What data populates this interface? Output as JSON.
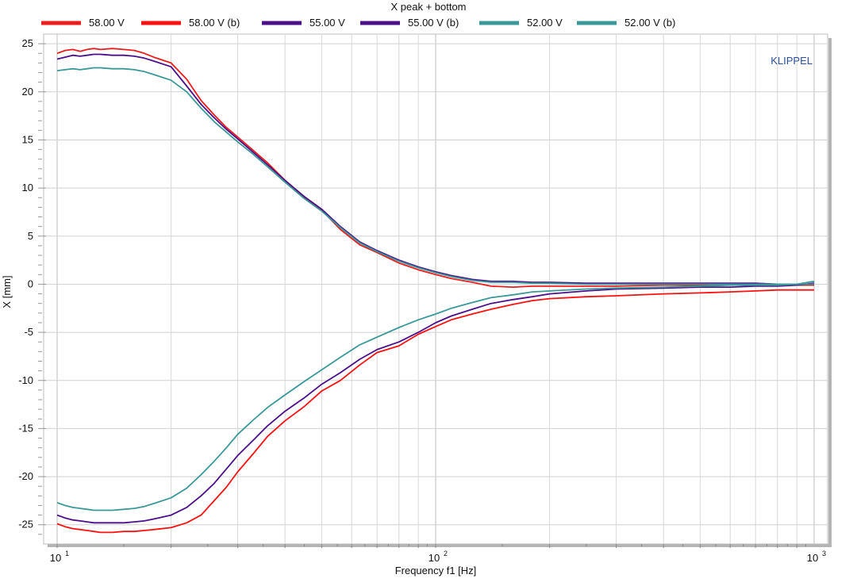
{
  "chart_data": {
    "type": "line",
    "title": "X  peak + bottom",
    "xlabel": "Frequency f1  [Hz]",
    "ylabel": "X  [mm]",
    "xscale": "log",
    "xlim": [
      10,
      1000
    ],
    "ylim": [
      -27,
      26
    ],
    "yticks": [
      25,
      20,
      15,
      10,
      5,
      0,
      -5,
      -10,
      -15,
      -20,
      -25
    ],
    "xticks": [
      {
        "value": 10,
        "base": "10",
        "exp": "1"
      },
      {
        "value": 100,
        "base": "10",
        "exp": "2"
      },
      {
        "value": 1000,
        "base": "10",
        "exp": "3"
      }
    ],
    "grid": true,
    "legend_position": "top",
    "watermark": "KLIPPEL",
    "x": [
      10,
      10.5,
      11,
      11.5,
      12,
      12.5,
      13,
      14,
      15,
      16,
      17,
      18,
      20,
      22,
      24,
      26,
      28,
      30,
      33,
      36,
      40,
      45,
      50,
      56,
      63,
      70,
      80,
      90,
      100,
      110,
      125,
      140,
      160,
      180,
      200,
      250,
      300,
      400,
      500,
      600,
      700,
      800,
      900,
      1000
    ],
    "series": [
      {
        "name": "58.00 V",
        "color": "#ee1c1c",
        "values": [
          24.0,
          24.3,
          24.4,
          24.2,
          24.4,
          24.5,
          24.4,
          24.5,
          24.4,
          24.3,
          24.0,
          23.6,
          23.0,
          21.3,
          19.1,
          17.6,
          16.3,
          15.3,
          13.9,
          12.6,
          10.8,
          9.0,
          7.7,
          5.7,
          4.1,
          3.3,
          2.2,
          1.5,
          1.0,
          0.6,
          0.2,
          -0.2,
          -0.3,
          -0.2,
          -0.2,
          -0.2,
          -0.2,
          -0.1,
          -0.1,
          -0.1,
          -0.1,
          -0.1,
          -0.1,
          -0.1
        ]
      },
      {
        "name": "58.00 V (b)",
        "color": "#ff1010",
        "values": [
          -24.9,
          -25.2,
          -25.4,
          -25.5,
          -25.6,
          -25.7,
          -25.8,
          -25.8,
          -25.7,
          -25.7,
          -25.6,
          -25.5,
          -25.3,
          -24.8,
          -24.0,
          -22.5,
          -21.1,
          -19.5,
          -17.6,
          -15.8,
          -14.2,
          -12.7,
          -11.1,
          -10.0,
          -8.4,
          -7.1,
          -6.4,
          -5.2,
          -4.4,
          -3.7,
          -3.1,
          -2.6,
          -2.1,
          -1.7,
          -1.5,
          -1.3,
          -1.2,
          -1.0,
          -0.9,
          -0.8,
          -0.7,
          -0.6,
          -0.6,
          -0.6
        ]
      },
      {
        "name": "55.00 V",
        "color": "#4b0f8a",
        "values": [
          23.4,
          23.6,
          23.8,
          23.7,
          23.8,
          23.9,
          23.9,
          23.8,
          23.8,
          23.7,
          23.5,
          23.2,
          22.6,
          20.6,
          18.7,
          17.3,
          16.1,
          15.1,
          13.7,
          12.4,
          10.8,
          9.1,
          7.8,
          6.0,
          4.4,
          3.5,
          2.5,
          1.8,
          1.3,
          0.9,
          0.5,
          0.3,
          0.3,
          0.2,
          0.2,
          0.1,
          0.1,
          0.1,
          0.1,
          0.1,
          0.1,
          0.0,
          0.0,
          0.0
        ]
      },
      {
        "name": "55.00 V (b)",
        "color": "#4b0f8a",
        "values": [
          -24.0,
          -24.3,
          -24.5,
          -24.6,
          -24.7,
          -24.8,
          -24.8,
          -24.8,
          -24.8,
          -24.7,
          -24.6,
          -24.4,
          -24.0,
          -23.2,
          -22.0,
          -20.7,
          -19.2,
          -17.8,
          -16.2,
          -14.7,
          -13.2,
          -11.8,
          -10.4,
          -9.2,
          -7.8,
          -6.8,
          -6.0,
          -5.0,
          -4.0,
          -3.3,
          -2.6,
          -2.0,
          -1.6,
          -1.3,
          -1.0,
          -0.7,
          -0.5,
          -0.4,
          -0.3,
          -0.3,
          -0.2,
          -0.2,
          -0.1,
          0.1
        ]
      },
      {
        "name": "52.00 V",
        "color": "#3a9898",
        "values": [
          22.2,
          22.3,
          22.4,
          22.3,
          22.4,
          22.5,
          22.5,
          22.4,
          22.4,
          22.3,
          22.1,
          21.8,
          21.2,
          20.0,
          18.3,
          16.9,
          15.8,
          14.8,
          13.5,
          12.2,
          10.6,
          8.9,
          7.6,
          5.9,
          4.3,
          3.4,
          2.4,
          1.7,
          1.2,
          0.8,
          0.4,
          0.2,
          0.2,
          0.1,
          0.1,
          0.0,
          0.0,
          0.0,
          0.0,
          0.0,
          0.0,
          0.0,
          0.0,
          0.0
        ]
      },
      {
        "name": "52.00 V (b)",
        "color": "#3a9898",
        "values": [
          -22.7,
          -23.0,
          -23.2,
          -23.3,
          -23.4,
          -23.5,
          -23.5,
          -23.5,
          -23.4,
          -23.3,
          -23.1,
          -22.8,
          -22.2,
          -21.2,
          -19.8,
          -18.4,
          -17.0,
          -15.6,
          -14.1,
          -12.8,
          -11.5,
          -10.1,
          -8.9,
          -7.6,
          -6.3,
          -5.5,
          -4.5,
          -3.7,
          -3.1,
          -2.5,
          -1.9,
          -1.4,
          -1.1,
          -0.8,
          -0.7,
          -0.5,
          -0.4,
          -0.3,
          -0.2,
          -0.1,
          -0.1,
          -0.1,
          0.0,
          0.3
        ]
      }
    ]
  }
}
